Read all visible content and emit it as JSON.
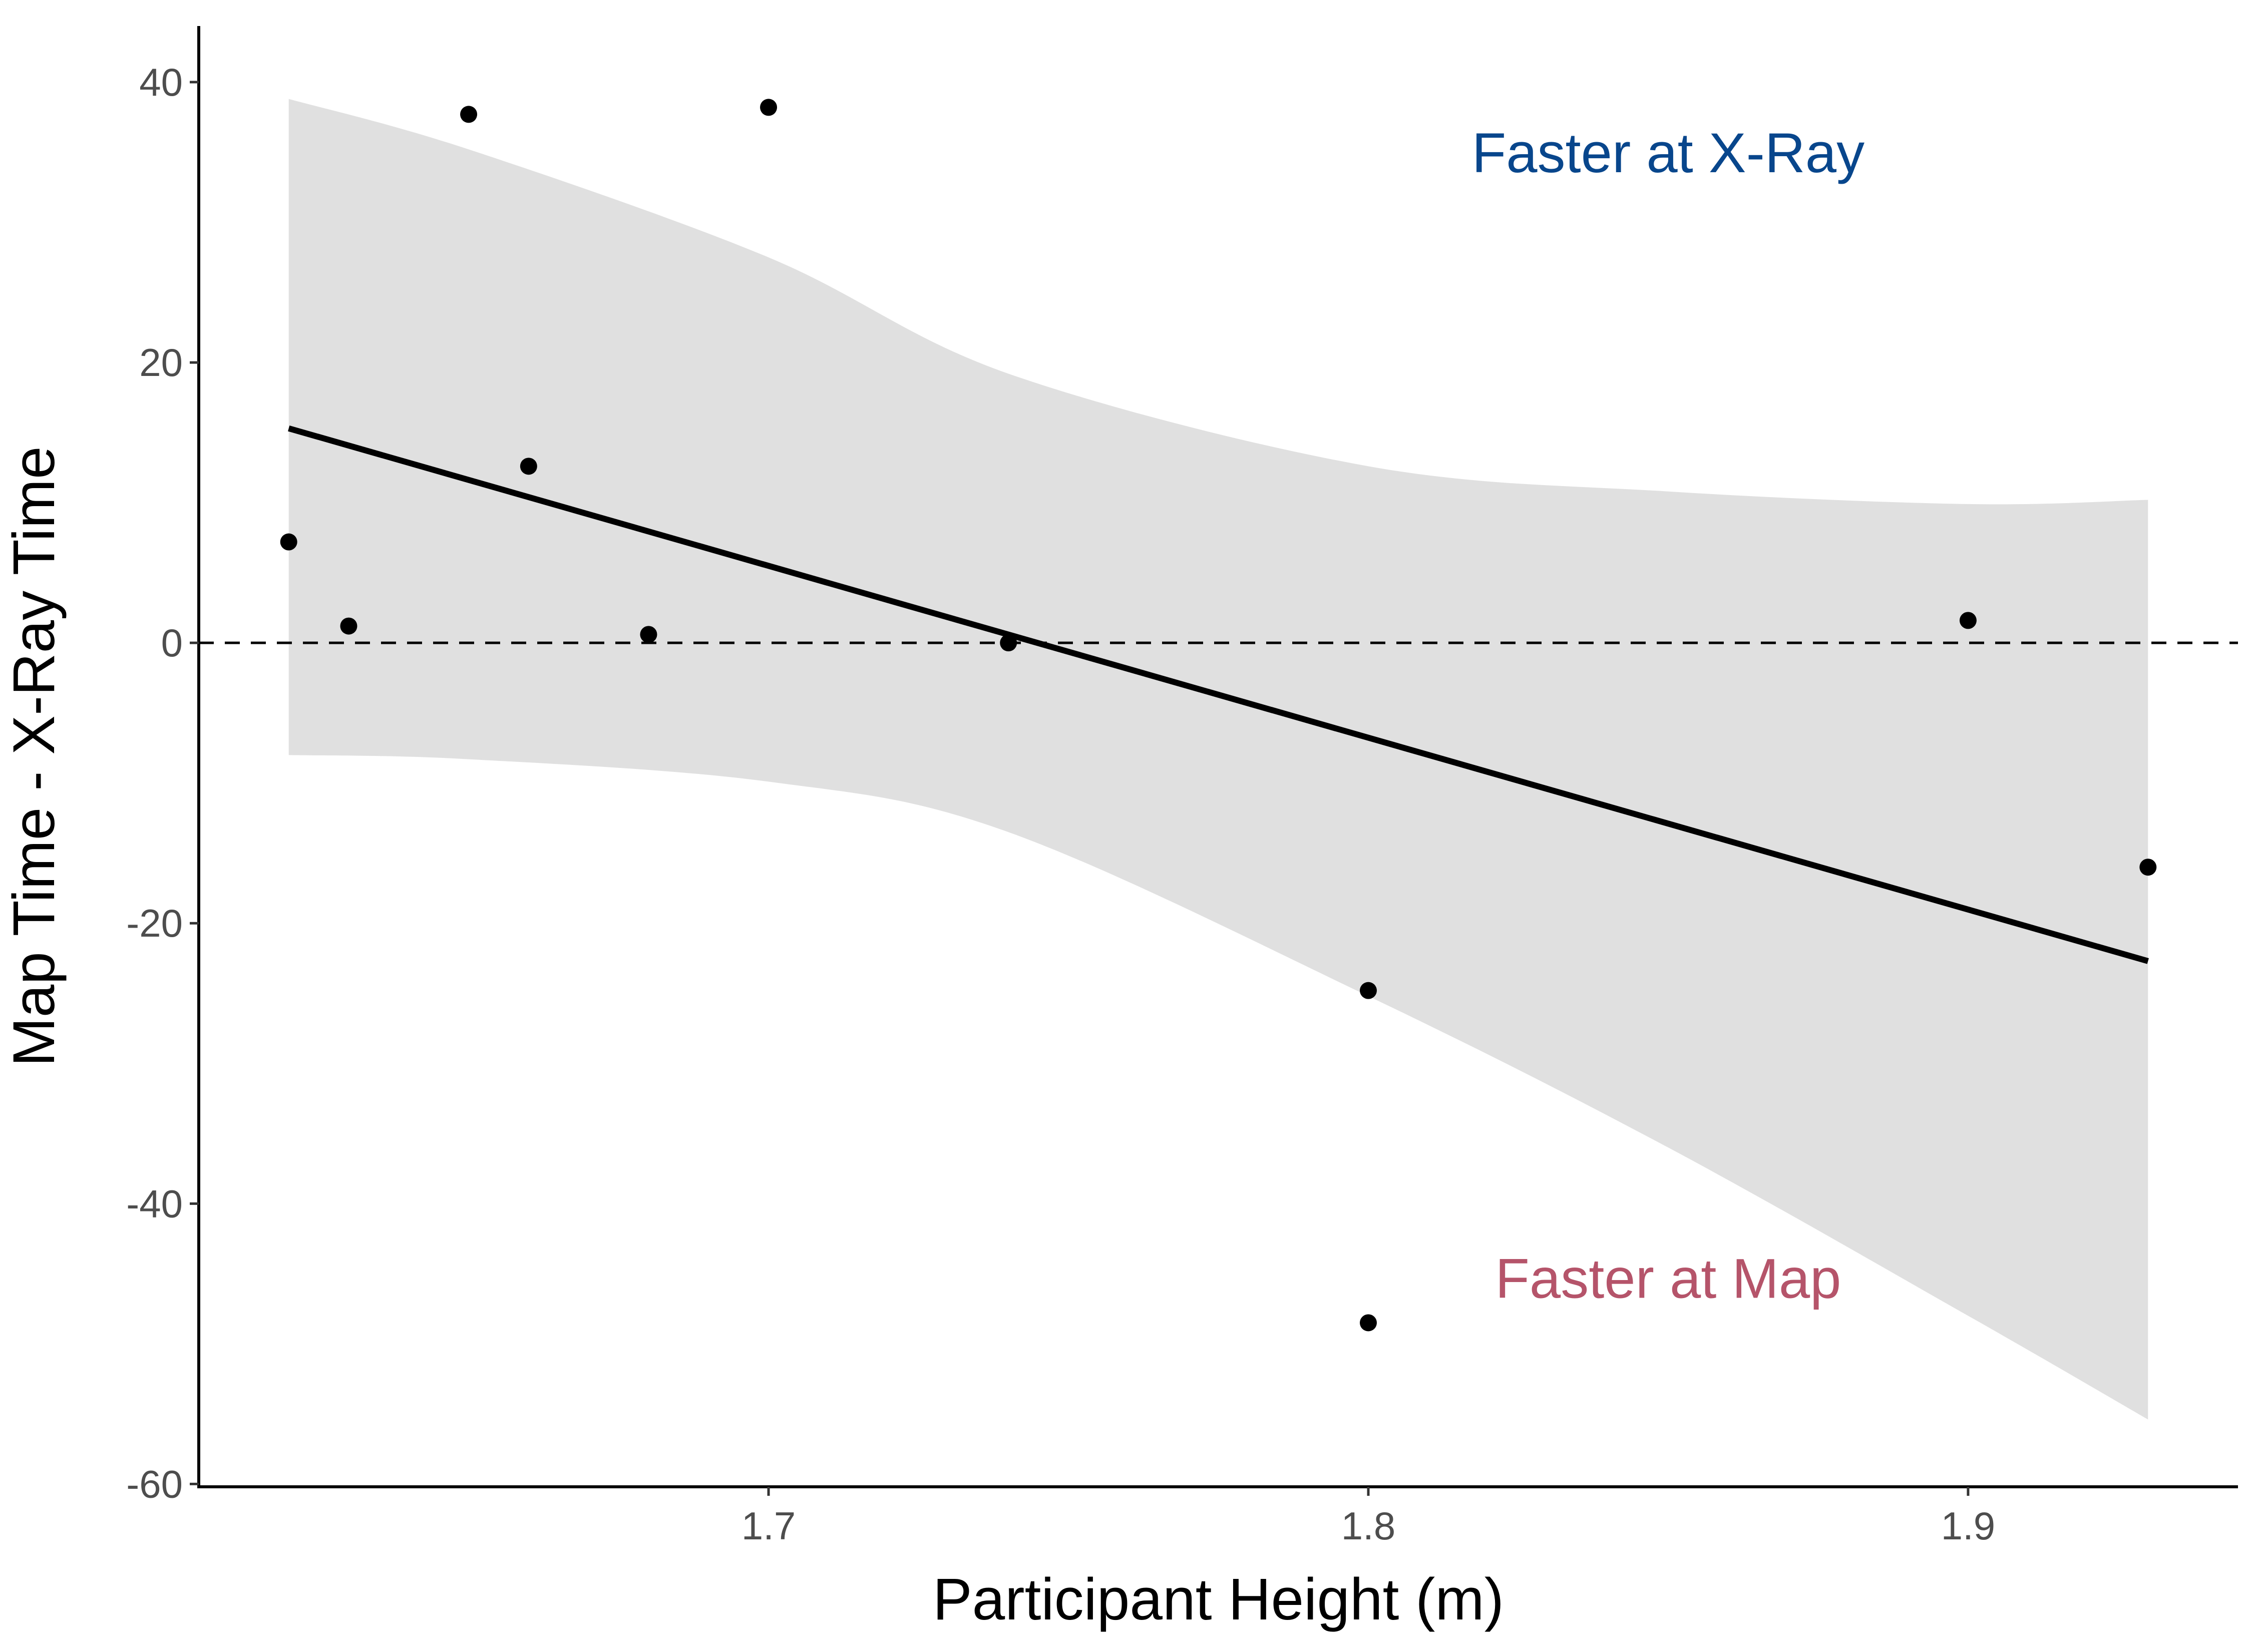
{
  "chart_data": {
    "type": "scatter",
    "title": "",
    "xlabel": "Participant Height (m)",
    "ylabel": "Map Time - X-Ray Time",
    "xlim": [
      1.605,
      1.945
    ],
    "ylim": [
      -60.2,
      44
    ],
    "xticks": [
      1.7,
      1.8,
      1.9
    ],
    "xtick_labels": [
      "1.7",
      "1.8",
      "1.9"
    ],
    "yticks": [
      -60,
      -40,
      -20,
      0,
      20,
      40
    ],
    "ytick_labels": [
      "-60",
      "-40",
      "-20",
      "0",
      "20",
      "40"
    ],
    "grid": false,
    "legend": "none",
    "points": [
      {
        "x": 1.62,
        "y": 7.2
      },
      {
        "x": 1.63,
        "y": 1.2
      },
      {
        "x": 1.65,
        "y": 37.7
      },
      {
        "x": 1.66,
        "y": 12.6
      },
      {
        "x": 1.68,
        "y": 0.6
      },
      {
        "x": 1.7,
        "y": 38.2
      },
      {
        "x": 1.74,
        "y": 0.0
      },
      {
        "x": 1.8,
        "y": -24.8
      },
      {
        "x": 1.8,
        "y": -48.5
      },
      {
        "x": 1.9,
        "y": 1.6
      },
      {
        "x": 1.93,
        "y": -16.0
      }
    ],
    "regression_line": {
      "x": [
        1.62,
        1.93
      ],
      "y": [
        15.3,
        -22.7
      ]
    },
    "confidence_band": {
      "x": [
        1.62,
        1.65,
        1.7,
        1.74,
        1.8,
        1.85,
        1.9,
        1.93
      ],
      "upper": [
        38.8,
        35.2,
        27.5,
        19.2,
        12.6,
        10.8,
        9.9,
        10.2
      ],
      "lower": [
        -8.0,
        -8.3,
        -9.9,
        -13.5,
        -25.2,
        -36.0,
        -48.0,
        -55.4
      ]
    },
    "reference_line": {
      "y": 0,
      "style": "dashed"
    },
    "annotations": [
      {
        "text": "Faster at X-Ray",
        "x": 1.85,
        "y": 35,
        "color": "#08468c"
      },
      {
        "text": "Faster at Map",
        "x": 1.85,
        "y": -45.3,
        "color": "#b5546a"
      }
    ],
    "colors": {
      "points": "#000000",
      "regression_line": "#000000",
      "confidence_band": "#e0e0e0",
      "axis": "#000000",
      "tick_labels": "#4d4d4d"
    }
  }
}
